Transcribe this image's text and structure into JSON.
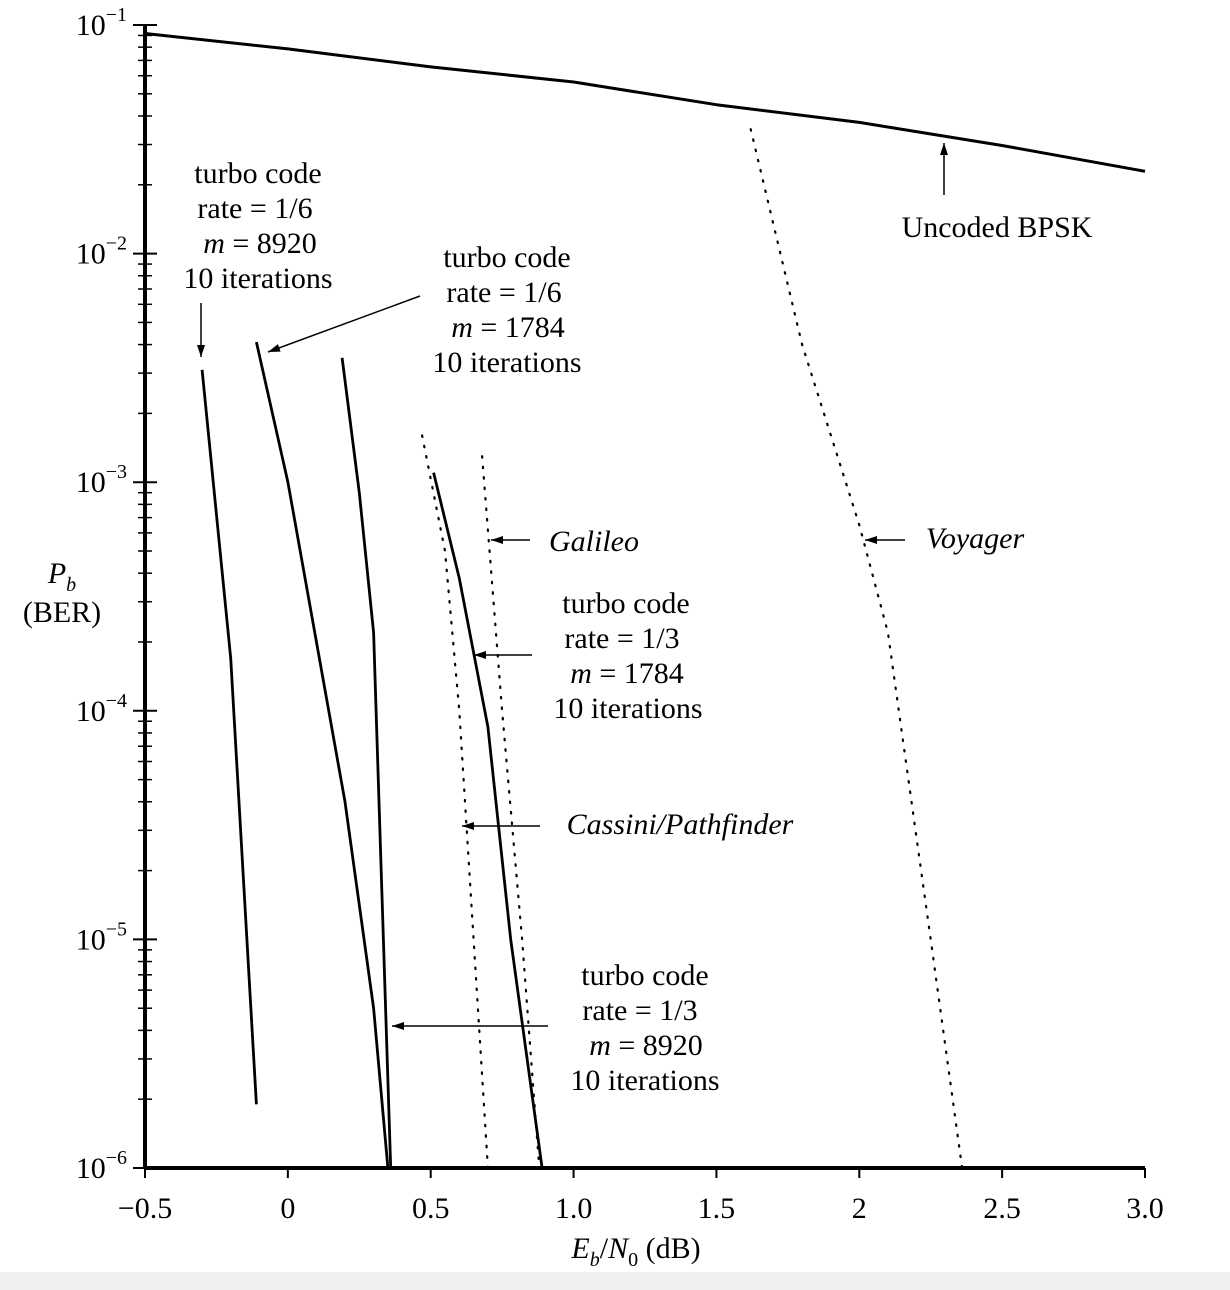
{
  "chart_data": {
    "type": "line",
    "scale": {
      "x": "linear",
      "y": "log"
    },
    "xlim": [
      -0.5,
      3.0
    ],
    "ylim": [
      1e-06,
      0.1
    ],
    "xticks": [
      -0.5,
      0,
      0.5,
      1.0,
      1.5,
      2,
      2.5,
      3.0
    ],
    "xtick_labels": [
      "−0.5",
      "0",
      "0.5",
      "1.0",
      "1.5",
      "2",
      "2.5",
      "3.0"
    ],
    "yticks": [
      {
        "value": 1e-06,
        "base": "10",
        "exp": "−6"
      },
      {
        "value": 1e-05,
        "base": "10",
        "exp": "−5"
      },
      {
        "value": 0.0001,
        "base": "10",
        "exp": "−4"
      },
      {
        "value": 0.001,
        "base": "10",
        "exp": "−3"
      },
      {
        "value": 0.01,
        "base": "10",
        "exp": "−2"
      },
      {
        "value": 0.1,
        "base": "10",
        "exp": "−1"
      }
    ],
    "xlabel": {
      "e": "E",
      "b": "b",
      "slash": "/",
      "n": "N",
      "zero": "0",
      "unit": " (dB)"
    },
    "ylabel": {
      "p": "P",
      "sub": "b",
      "line2": "(BER)"
    },
    "series": [
      {
        "name": "Uncoded BPSK",
        "style": "solid-thick",
        "points": [
          [
            -0.5,
            0.0918
          ],
          [
            0,
            0.0786
          ],
          [
            0.5,
            0.0656
          ],
          [
            1.0,
            0.0563
          ],
          [
            1.5,
            0.0448
          ],
          [
            2.0,
            0.0375
          ],
          [
            2.5,
            0.0297
          ],
          [
            3.0,
            0.0229
          ]
        ]
      },
      {
        "name": "turbo code rate = 1/6 m = 8920 10 iterations",
        "style": "solid",
        "points": [
          [
            -0.3,
            0.0031
          ],
          [
            -0.2,
            0.00017
          ],
          [
            -0.11,
            1.9e-06
          ]
        ]
      },
      {
        "name": "turbo code rate = 1/6 m = 1784 10 iterations",
        "style": "solid",
        "points": [
          [
            -0.11,
            0.0041
          ],
          [
            0,
            0.001
          ],
          [
            0.2,
            4e-05
          ],
          [
            0.3,
            5e-06
          ],
          [
            0.35,
            1e-06
          ]
        ]
      },
      {
        "name": "turbo code rate = 1/3 m = 8920 10 iterations",
        "style": "solid",
        "points": [
          [
            0.19,
            0.0035
          ],
          [
            0.25,
            0.0009
          ],
          [
            0.3,
            0.00022
          ],
          [
            0.33,
            1.5e-05
          ],
          [
            0.36,
            1e-06
          ]
        ]
      },
      {
        "name": "turbo code rate = 1/3 m = 1784 10 iterations",
        "style": "solid",
        "points": [
          [
            0.51,
            0.0011
          ],
          [
            0.6,
            0.00038
          ],
          [
            0.7,
            8.5e-05
          ],
          [
            0.78,
            1e-05
          ],
          [
            0.89,
            1e-06
          ]
        ]
      },
      {
        "name": "Cassini/Pathfinder",
        "style": "dotted",
        "points": [
          [
            0.47,
            0.0016
          ],
          [
            0.55,
            0.0005
          ],
          [
            0.6,
            0.0001
          ],
          [
            0.65,
            1e-05
          ],
          [
            0.7,
            1e-06
          ]
        ]
      },
      {
        "name": "Galileo",
        "style": "dotted",
        "points": [
          [
            0.68,
            0.0013
          ],
          [
            0.75,
            0.0001
          ],
          [
            0.82,
            1e-05
          ],
          [
            0.88,
            1e-06
          ]
        ]
      },
      {
        "name": "Voyager",
        "style": "dotted",
        "points": [
          [
            1.62,
            0.035
          ],
          [
            1.8,
            0.004
          ],
          [
            2.0,
            0.00065
          ],
          [
            2.1,
            0.00022
          ],
          [
            2.25,
            1e-05
          ],
          [
            2.36,
            1e-06
          ]
        ]
      }
    ],
    "annotations": [
      {
        "id": "t16-8920",
        "lines": [
          "turbo code",
          "rate = 1/6",
          "m = 8920",
          "10 iterations"
        ]
      },
      {
        "id": "t16-1784",
        "lines": [
          "turbo code",
          "rate = 1/6",
          "m = 1784",
          "10 iterations"
        ]
      },
      {
        "id": "t13-1784",
        "lines": [
          "turbo code",
          "rate = 1/3",
          "m = 1784",
          "10 iterations"
        ]
      },
      {
        "id": "t13-8920",
        "lines": [
          "turbo code",
          "rate = 1/3",
          "m = 8920",
          "10 iterations"
        ]
      },
      {
        "id": "galileo",
        "lines": [
          "Galileo"
        ]
      },
      {
        "id": "voyager",
        "lines": [
          "Voyager"
        ]
      },
      {
        "id": "cassini",
        "lines": [
          "Cassini/Pathfinder"
        ]
      },
      {
        "id": "uncoded",
        "lines": [
          "Uncoded BPSK"
        ]
      }
    ],
    "grid": false,
    "colors": {
      "line": "#000000",
      "background": "#ffffff"
    }
  }
}
